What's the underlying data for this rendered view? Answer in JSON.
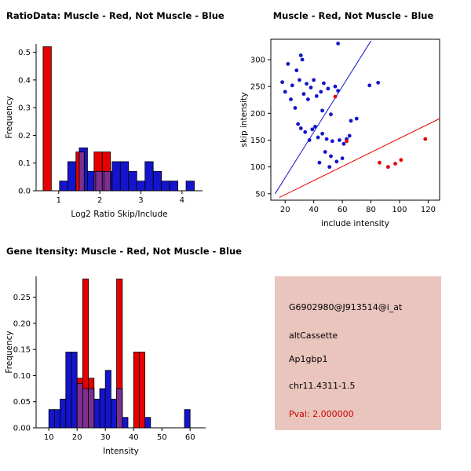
{
  "figure_bg": "#ffffff",
  "chart_data": [
    {
      "id": "ratio_hist",
      "type": "histogram",
      "title": "RatioData: Muscle - Red, Not Muscle - Blue",
      "xlabel": "Log2 Ratio Skip/Include",
      "ylabel": "Frequency",
      "xlim": [
        0.45,
        4.5
      ],
      "ylim": [
        0,
        0.53
      ],
      "xticks": {
        "values": [
          1,
          2,
          3,
          4
        ],
        "labels": [
          "1",
          "2",
          "3",
          "4"
        ]
      },
      "yticks": {
        "values": [
          0,
          0.1,
          0.2,
          0.3,
          0.4,
          0.5
        ],
        "labels": [
          "0.0",
          "0.1",
          "0.2",
          "0.3",
          "0.4",
          "0.5"
        ]
      },
      "bin_width": 0.2,
      "overlap_color": "#7d2f8f",
      "grid": false,
      "series": [
        {
          "name": "Not Muscle",
          "color": "#1414cc",
          "bins": [
            {
              "x": 1.02,
              "h": 0.035
            },
            {
              "x": 1.22,
              "h": 0.105
            },
            {
              "x": 1.5,
              "h": 0.155
            },
            {
              "x": 1.7,
              "h": 0.07
            },
            {
              "x": 1.9,
              "h": 0.07
            },
            {
              "x": 2.1,
              "h": 0.07
            },
            {
              "x": 2.3,
              "h": 0.105
            },
            {
              "x": 2.5,
              "h": 0.105
            },
            {
              "x": 2.7,
              "h": 0.07
            },
            {
              "x": 2.9,
              "h": 0.035
            },
            {
              "x": 3.1,
              "h": 0.105
            },
            {
              "x": 3.3,
              "h": 0.07
            },
            {
              "x": 3.5,
              "h": 0.035
            },
            {
              "x": 3.7,
              "h": 0.035
            },
            {
              "x": 4.1,
              "h": 0.035
            }
          ]
        },
        {
          "name": "Muscle",
          "color": "#e60000",
          "bins": [
            {
              "x": 0.62,
              "h": 0.52
            },
            {
              "x": 1.42,
              "h": 0.14
            },
            {
              "x": 1.86,
              "h": 0.14
            },
            {
              "x": 2.06,
              "h": 0.14
            }
          ]
        }
      ]
    },
    {
      "id": "scatter",
      "type": "scatter",
      "title": "Muscle - Red, Not Muscle - Blue",
      "xlabel": "include intensity",
      "ylabel": "skip intensity",
      "xlim": [
        10,
        128
      ],
      "ylim": [
        38,
        338
      ],
      "xticks": {
        "values": [
          20,
          40,
          60,
          80,
          100,
          120
        ],
        "labels": [
          "20",
          "40",
          "60",
          "80",
          "100",
          "120"
        ]
      },
      "yticks": {
        "values": [
          50,
          100,
          150,
          200,
          250,
          300
        ],
        "labels": [
          "50",
          "100",
          "150",
          "200",
          "250",
          "300"
        ]
      },
      "grid": false,
      "series": [
        {
          "name": "Not Muscle",
          "color": "#1414cc",
          "points": [
            [
              18,
              258
            ],
            [
              20,
              240
            ],
            [
              22,
              292
            ],
            [
              24,
              226
            ],
            [
              25,
              252
            ],
            [
              27,
              210
            ],
            [
              28,
              280
            ],
            [
              29,
              180
            ],
            [
              30,
              262
            ],
            [
              31,
              172
            ],
            [
              31,
              308
            ],
            [
              32,
              300
            ],
            [
              33,
              236
            ],
            [
              34,
              165
            ],
            [
              35,
              255
            ],
            [
              36,
              226
            ],
            [
              37,
              150
            ],
            [
              38,
              248
            ],
            [
              39,
              170
            ],
            [
              40,
              262
            ],
            [
              41,
              175
            ],
            [
              42,
              232
            ],
            [
              43,
              155
            ],
            [
              44,
              108
            ],
            [
              45,
              240
            ],
            [
              46,
              162
            ],
            [
              46,
              205
            ],
            [
              47,
              256
            ],
            [
              48,
              128
            ],
            [
              49,
              152
            ],
            [
              50,
              246
            ],
            [
              51,
              100
            ],
            [
              52,
              120
            ],
            [
              52,
              198
            ],
            [
              53,
              148
            ],
            [
              55,
              250
            ],
            [
              56,
              110
            ],
            [
              57,
              242
            ],
            [
              57,
              330
            ],
            [
              58,
              150
            ],
            [
              60,
              116
            ],
            [
              61,
              143
            ],
            [
              63,
              152
            ],
            [
              65,
              158
            ],
            [
              66,
              186
            ],
            [
              70,
              190
            ],
            [
              79,
              252
            ],
            [
              85,
              257
            ]
          ]
        },
        {
          "name": "Muscle",
          "color": "#e60000",
          "points": [
            [
              55,
              231
            ],
            [
              63,
              148
            ],
            [
              86,
              108
            ],
            [
              92,
              100
            ],
            [
              97,
              106
            ],
            [
              101,
              113
            ],
            [
              118,
              152
            ]
          ]
        }
      ],
      "lines": [
        {
          "name": "blue-separation-line",
          "color": "#1414cc",
          "from": [
            13,
            50
          ],
          "to": [
            80,
            335
          ]
        },
        {
          "name": "red-separation-line",
          "color": "#e60000",
          "from": [
            16,
            43
          ],
          "to": [
            128,
            190
          ]
        }
      ]
    },
    {
      "id": "gene_hist",
      "type": "histogram",
      "title": "Gene Itensity: Muscle - Red, Not Muscle - Blue",
      "xlabel": "Intensity",
      "ylabel": "Frequency",
      "xlim": [
        5.5,
        65.5
      ],
      "ylim": [
        0,
        0.29
      ],
      "xticks": {
        "values": [
          10,
          20,
          30,
          40,
          50,
          60
        ],
        "labels": [
          "10",
          "20",
          "30",
          "40",
          "50",
          "60"
        ]
      },
      "yticks": {
        "values": [
          0,
          0.05,
          0.1,
          0.15,
          0.2,
          0.25
        ],
        "labels": [
          "0.00",
          "0.05",
          "0.10",
          "0.15",
          "0.20",
          "0.25"
        ]
      },
      "bin_width": 2,
      "overlap_color": "#7d2f8f",
      "grid": false,
      "series": [
        {
          "name": "Not Muscle",
          "color": "#1414cc",
          "bins": [
            {
              "x": 10,
              "h": 0.035
            },
            {
              "x": 12,
              "h": 0.035
            },
            {
              "x": 14,
              "h": 0.055
            },
            {
              "x": 16,
              "h": 0.145
            },
            {
              "x": 18,
              "h": 0.145
            },
            {
              "x": 20,
              "h": 0.085
            },
            {
              "x": 22,
              "h": 0.075
            },
            {
              "x": 24,
              "h": 0.075
            },
            {
              "x": 26,
              "h": 0.055
            },
            {
              "x": 28,
              "h": 0.075
            },
            {
              "x": 30,
              "h": 0.11
            },
            {
              "x": 32,
              "h": 0.055
            },
            {
              "x": 34,
              "h": 0.075
            },
            {
              "x": 36,
              "h": 0.02
            },
            {
              "x": 44,
              "h": 0.02
            },
            {
              "x": 58,
              "h": 0.035
            }
          ]
        },
        {
          "name": "Muscle",
          "color": "#e60000",
          "bins": [
            {
              "x": 20,
              "h": 0.095
            },
            {
              "x": 22,
              "h": 0.285
            },
            {
              "x": 24,
              "h": 0.095
            },
            {
              "x": 34,
              "h": 0.285
            },
            {
              "x": 40,
              "h": 0.145
            },
            {
              "x": 42,
              "h": 0.145
            }
          ]
        }
      ]
    }
  ],
  "info_box": {
    "bg": "#e9c5bd",
    "lines": [
      {
        "text": "G6902980@J913514@i_at",
        "color": "#000000"
      },
      {
        "text": "altCassette",
        "color": "#000000"
      },
      {
        "text": "Ap1gbp1",
        "color": "#000000"
      },
      {
        "text": "chr11.4311-1.5",
        "color": "#000000"
      },
      {
        "text": "Pval: 2.000000",
        "color": "#cc0000"
      }
    ]
  }
}
